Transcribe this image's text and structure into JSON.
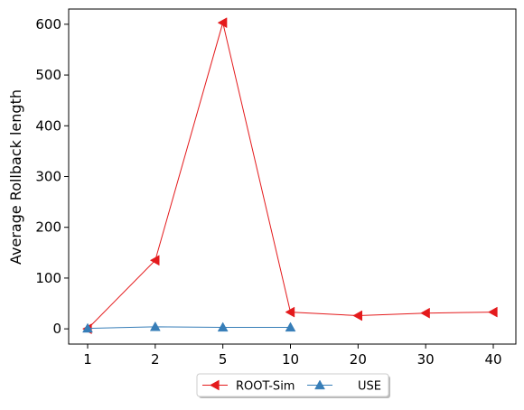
{
  "chart_data": {
    "type": "line",
    "title": "",
    "xlabel": "",
    "ylabel": "Average Rollback length",
    "categories": [
      "1",
      "2",
      "5",
      "10",
      "20",
      "30",
      "40"
    ],
    "ylim": [
      -30,
      630
    ],
    "yticks": [
      0,
      100,
      200,
      300,
      400,
      500,
      600
    ],
    "grid": false,
    "legend_placement": "bottom-center",
    "series": [
      {
        "name": "ROOT-Sim",
        "color": "#e41a1c",
        "marker": "triangle-left",
        "values": [
          0,
          135,
          603,
          33,
          26,
          31,
          33
        ]
      },
      {
        "name": "USE",
        "color": "#377eb8",
        "marker": "triangle-up",
        "values": [
          1,
          4,
          3,
          3,
          null,
          null,
          null
        ]
      }
    ]
  }
}
